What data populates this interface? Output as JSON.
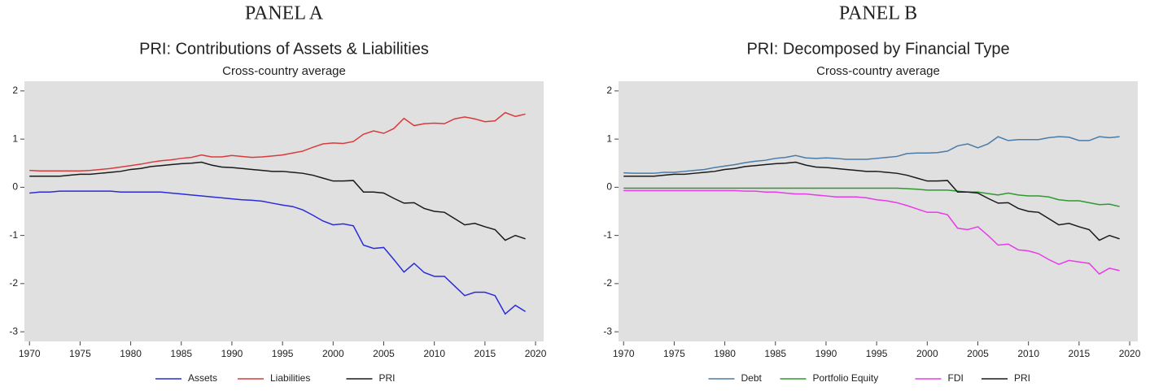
{
  "chart_data": [
    {
      "type": "line",
      "panel": "PANEL A",
      "title": "PRI: Contributions of Assets & Liabilities",
      "subtitle": "Cross-country average",
      "x": [
        1970,
        1971,
        1972,
        1973,
        1974,
        1975,
        1976,
        1977,
        1978,
        1979,
        1980,
        1981,
        1982,
        1983,
        1984,
        1985,
        1986,
        1987,
        1988,
        1989,
        1990,
        1991,
        1992,
        1993,
        1994,
        1995,
        1996,
        1997,
        1998,
        1999,
        2000,
        2001,
        2002,
        2003,
        2004,
        2005,
        2006,
        2007,
        2008,
        2009,
        2010,
        2011,
        2012,
        2013,
        2014,
        2015,
        2016,
        2017,
        2018,
        2019
      ],
      "series": [
        {
          "name": "Assets",
          "color": "#2b2bd9",
          "values": [
            -0.12,
            -0.1,
            -0.1,
            -0.08,
            -0.08,
            -0.08,
            -0.08,
            -0.08,
            -0.08,
            -0.1,
            -0.1,
            -0.1,
            -0.1,
            -0.1,
            -0.12,
            -0.14,
            -0.16,
            -0.18,
            -0.2,
            -0.22,
            -0.24,
            -0.26,
            -0.27,
            -0.29,
            -0.33,
            -0.37,
            -0.4,
            -0.47,
            -0.58,
            -0.7,
            -0.78,
            -0.76,
            -0.8,
            -1.2,
            -1.27,
            -1.25,
            -1.5,
            -1.76,
            -1.58,
            -1.77,
            -1.85,
            -1.85,
            -2.05,
            -2.25,
            -2.18,
            -2.18,
            -2.25,
            -2.63,
            -2.45,
            -2.58
          ]
        },
        {
          "name": "Liabilities",
          "color": "#d93b3b",
          "values": [
            0.35,
            0.34,
            0.34,
            0.34,
            0.34,
            0.34,
            0.35,
            0.37,
            0.39,
            0.42,
            0.45,
            0.48,
            0.52,
            0.55,
            0.57,
            0.6,
            0.62,
            0.67,
            0.63,
            0.63,
            0.66,
            0.64,
            0.62,
            0.63,
            0.65,
            0.67,
            0.71,
            0.75,
            0.83,
            0.9,
            0.92,
            0.91,
            0.95,
            1.1,
            1.17,
            1.12,
            1.22,
            1.43,
            1.28,
            1.32,
            1.33,
            1.32,
            1.42,
            1.46,
            1.42,
            1.36,
            1.38,
            1.55,
            1.47,
            1.52
          ]
        },
        {
          "name": "PRI",
          "color": "#1a1a1a",
          "values": [
            0.23,
            0.23,
            0.23,
            0.23,
            0.25,
            0.27,
            0.27,
            0.29,
            0.31,
            0.33,
            0.37,
            0.39,
            0.43,
            0.45,
            0.47,
            0.49,
            0.5,
            0.52,
            0.46,
            0.42,
            0.41,
            0.39,
            0.37,
            0.35,
            0.33,
            0.33,
            0.31,
            0.29,
            0.25,
            0.19,
            0.13,
            0.13,
            0.14,
            -0.1,
            -0.1,
            -0.12,
            -0.23,
            -0.33,
            -0.32,
            -0.44,
            -0.5,
            -0.52,
            -0.65,
            -0.78,
            -0.75,
            -0.82,
            -0.88,
            -1.1,
            -1.0,
            -1.07
          ]
        }
      ],
      "xlim": [
        1969.5,
        2020.8
      ],
      "xticks": [
        1970,
        1975,
        1980,
        1985,
        1990,
        1995,
        2000,
        2005,
        2010,
        2015,
        2020
      ],
      "ylim": [
        -3.2,
        2.2
      ],
      "yticks": [
        -3,
        -2,
        -1,
        0,
        1,
        2
      ]
    },
    {
      "type": "line",
      "panel": "PANEL B",
      "title": "PRI: Decomposed by Financial Type",
      "subtitle": "Cross-country average",
      "x": [
        1970,
        1971,
        1972,
        1973,
        1974,
        1975,
        1976,
        1977,
        1978,
        1979,
        1980,
        1981,
        1982,
        1983,
        1984,
        1985,
        1986,
        1987,
        1988,
        1989,
        1990,
        1991,
        1992,
        1993,
        1994,
        1995,
        1996,
        1997,
        1998,
        1999,
        2000,
        2001,
        2002,
        2003,
        2004,
        2005,
        2006,
        2007,
        2008,
        2009,
        2010,
        2011,
        2012,
        2013,
        2014,
        2015,
        2016,
        2017,
        2018,
        2019
      ],
      "series": [
        {
          "name": "Debt",
          "color": "#4a7ba8",
          "values": [
            0.3,
            0.29,
            0.29,
            0.29,
            0.31,
            0.31,
            0.33,
            0.35,
            0.37,
            0.41,
            0.44,
            0.47,
            0.51,
            0.54,
            0.56,
            0.6,
            0.62,
            0.66,
            0.61,
            0.6,
            0.61,
            0.6,
            0.58,
            0.58,
            0.58,
            0.6,
            0.62,
            0.64,
            0.7,
            0.71,
            0.71,
            0.72,
            0.75,
            0.86,
            0.9,
            0.82,
            0.9,
            1.05,
            0.97,
            0.99,
            0.99,
            0.99,
            1.03,
            1.05,
            1.04,
            0.97,
            0.97,
            1.05,
            1.03,
            1.05
          ]
        },
        {
          "name": "Portfolio Equity",
          "color": "#2e9a2e",
          "values": [
            -0.02,
            -0.02,
            -0.02,
            -0.02,
            -0.02,
            -0.02,
            -0.02,
            -0.02,
            -0.02,
            -0.02,
            -0.02,
            -0.02,
            -0.02,
            -0.02,
            -0.02,
            -0.02,
            -0.02,
            -0.02,
            -0.02,
            -0.02,
            -0.02,
            -0.02,
            -0.02,
            -0.02,
            -0.02,
            -0.02,
            -0.02,
            -0.02,
            -0.03,
            -0.04,
            -0.06,
            -0.06,
            -0.06,
            -0.08,
            -0.1,
            -0.1,
            -0.13,
            -0.16,
            -0.12,
            -0.16,
            -0.18,
            -0.18,
            -0.2,
            -0.26,
            -0.28,
            -0.28,
            -0.32,
            -0.36,
            -0.35,
            -0.4
          ]
        },
        {
          "name": "FDI",
          "color": "#e83be8",
          "values": [
            -0.07,
            -0.07,
            -0.07,
            -0.07,
            -0.07,
            -0.07,
            -0.07,
            -0.07,
            -0.07,
            -0.07,
            -0.07,
            -0.07,
            -0.08,
            -0.08,
            -0.1,
            -0.1,
            -0.12,
            -0.14,
            -0.14,
            -0.16,
            -0.18,
            -0.2,
            -0.2,
            -0.2,
            -0.22,
            -0.26,
            -0.28,
            -0.32,
            -0.38,
            -0.45,
            -0.52,
            -0.52,
            -0.57,
            -0.85,
            -0.88,
            -0.82,
            -1.0,
            -1.2,
            -1.18,
            -1.3,
            -1.32,
            -1.38,
            -1.5,
            -1.6,
            -1.52,
            -1.55,
            -1.58,
            -1.8,
            -1.68,
            -1.73
          ]
        },
        {
          "name": "PRI",
          "color": "#1a1a1a",
          "values": [
            0.23,
            0.23,
            0.23,
            0.23,
            0.25,
            0.27,
            0.27,
            0.29,
            0.31,
            0.33,
            0.37,
            0.39,
            0.43,
            0.45,
            0.47,
            0.49,
            0.5,
            0.52,
            0.46,
            0.42,
            0.41,
            0.39,
            0.37,
            0.35,
            0.33,
            0.33,
            0.31,
            0.29,
            0.25,
            0.19,
            0.13,
            0.13,
            0.14,
            -0.1,
            -0.1,
            -0.12,
            -0.23,
            -0.33,
            -0.32,
            -0.44,
            -0.5,
            -0.52,
            -0.65,
            -0.78,
            -0.75,
            -0.82,
            -0.88,
            -1.1,
            -1.0,
            -1.07
          ]
        }
      ],
      "xlim": [
        1969.5,
        2020.8
      ],
      "xticks": [
        1970,
        1975,
        1980,
        1985,
        1990,
        1995,
        2000,
        2005,
        2010,
        2015,
        2020
      ],
      "ylim": [
        -3.2,
        2.2
      ],
      "yticks": [
        -3,
        -2,
        -1,
        0,
        1,
        2
      ]
    }
  ]
}
